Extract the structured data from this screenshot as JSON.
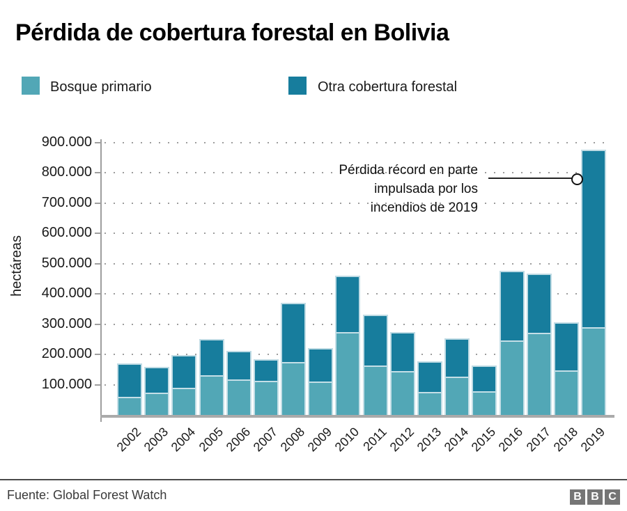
{
  "title": "Pérdida de cobertura forestal en Bolivia",
  "legend": {
    "primary": {
      "label": "Bosque primario",
      "color": "#52a7b6"
    },
    "other": {
      "label": "Otra cobertura forestal",
      "color": "#177d9d"
    }
  },
  "y_axis": {
    "title": "hectáreas",
    "tick_labels": [
      "900.000",
      "800.000",
      "700.000",
      "600.000",
      "500.000",
      "400.000",
      "300.000",
      "200.000",
      "100.000"
    ]
  },
  "annotation": {
    "lines": [
      "Pérdida récord en parte",
      "impulsada por los",
      "incendios de 2019"
    ]
  },
  "footer": {
    "source": "Fuente: Global Forest Watch",
    "logo_letters": [
      "B",
      "B",
      "C"
    ]
  },
  "chart_data": {
    "type": "bar",
    "stacked": true,
    "title": "Pérdida de cobertura forestal en Bolivia",
    "ylabel": "hectáreas",
    "ylim": [
      0,
      900000
    ],
    "ytick_interval": 100000,
    "grid": "dotted horizontal lines every 100.000",
    "legend_position": "top",
    "categories": [
      "2002",
      "2003",
      "2004",
      "2005",
      "2006",
      "2007",
      "2008",
      "2009",
      "2010",
      "2011",
      "2012",
      "2013",
      "2014",
      "2015",
      "2016",
      "2017",
      "2018",
      "2019"
    ],
    "series": [
      {
        "name": "Bosque primario",
        "color": "#52a7b6",
        "values": [
          60000,
          74000,
          90000,
          131000,
          117000,
          112000,
          175000,
          111000,
          273000,
          163000,
          145000,
          76000,
          126000,
          78000,
          245000,
          271000,
          148000,
          290000
        ]
      },
      {
        "name": "Otra cobertura forestal",
        "color": "#177d9d",
        "values": [
          110000,
          84000,
          108000,
          119000,
          95000,
          72000,
          196000,
          109000,
          186000,
          169000,
          129000,
          100000,
          128000,
          85000,
          232000,
          196000,
          157000,
          585000
        ]
      }
    ],
    "totals": [
      170000,
      158000,
      198000,
      250000,
      212000,
      184000,
      371000,
      220000,
      459000,
      332000,
      274000,
      176000,
      254000,
      163000,
      477000,
      467000,
      305000,
      875000
    ],
    "annotation": {
      "text": "Pérdida récord en parte impulsada por los incendios de 2019",
      "target_category": "2019",
      "target_value": 780000
    }
  }
}
